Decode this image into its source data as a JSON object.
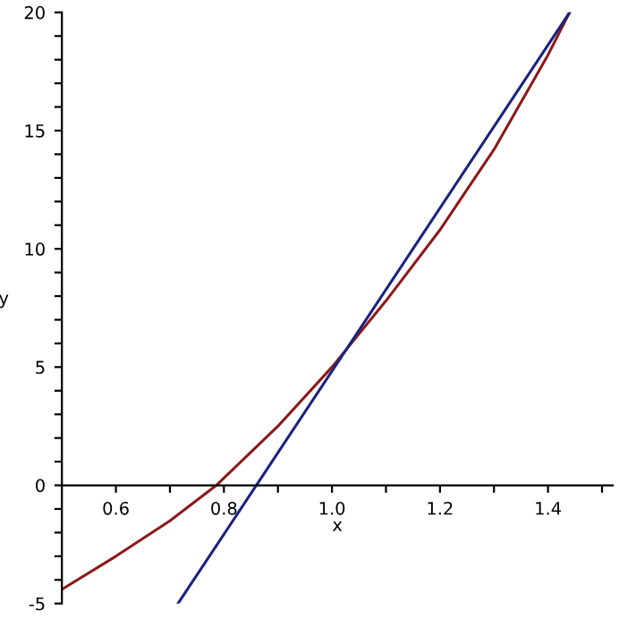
{
  "chart_data": {
    "type": "line",
    "xlabel": "x",
    "ylabel": "y",
    "xlim": [
      0.5,
      1.52
    ],
    "ylim": [
      -5,
      20
    ],
    "xticks": [
      0.6,
      {
        "value": 0.7,
        "label": null
      },
      0.8,
      {
        "value": 0.9,
        "label": null
      },
      {
        "value": 1.0,
        "label": "1.0"
      },
      {
        "value": 1.1,
        "label": null
      },
      1.2,
      {
        "value": 1.3,
        "label": null
      },
      1.4,
      {
        "value": 1.5,
        "label": null
      }
    ],
    "yticks": [
      -5,
      {
        "value": -4,
        "label": null
      },
      {
        "value": -3,
        "label": null
      },
      {
        "value": -2,
        "label": null
      },
      {
        "value": -1,
        "label": null
      },
      0,
      {
        "value": 1,
        "label": null
      },
      {
        "value": 2,
        "label": null
      },
      {
        "value": 3,
        "label": null
      },
      {
        "value": 4,
        "label": null
      },
      5,
      {
        "value": 6,
        "label": null
      },
      {
        "value": 7,
        "label": null
      },
      {
        "value": 8,
        "label": null
      },
      {
        "value": 9,
        "label": null
      },
      10,
      {
        "value": 11,
        "label": null
      },
      {
        "value": 12,
        "label": null
      },
      {
        "value": 13,
        "label": null
      },
      {
        "value": 14,
        "label": null
      },
      15,
      {
        "value": 16,
        "label": null
      },
      {
        "value": 17,
        "label": null
      },
      {
        "value": 18,
        "label": null
      },
      {
        "value": 19,
        "label": null
      },
      20
    ],
    "grid": false,
    "legend": false,
    "marker": "none",
    "line_style": "solid",
    "series": [
      {
        "color": "#8b1a1a",
        "x": [
          0.5,
          0.6,
          0.7,
          0.786,
          0.9,
          1.0,
          1.1,
          1.2,
          1.3,
          1.4,
          1.44
        ],
        "values": [
          -4.4,
          -3.0,
          -1.5,
          0,
          2.5,
          5,
          7.8,
          10.8,
          14.2,
          18.2,
          20
        ]
      },
      {
        "color": "#1a237e",
        "x": [
          0.715,
          1.44
        ],
        "values": [
          -5,
          20
        ]
      }
    ]
  }
}
